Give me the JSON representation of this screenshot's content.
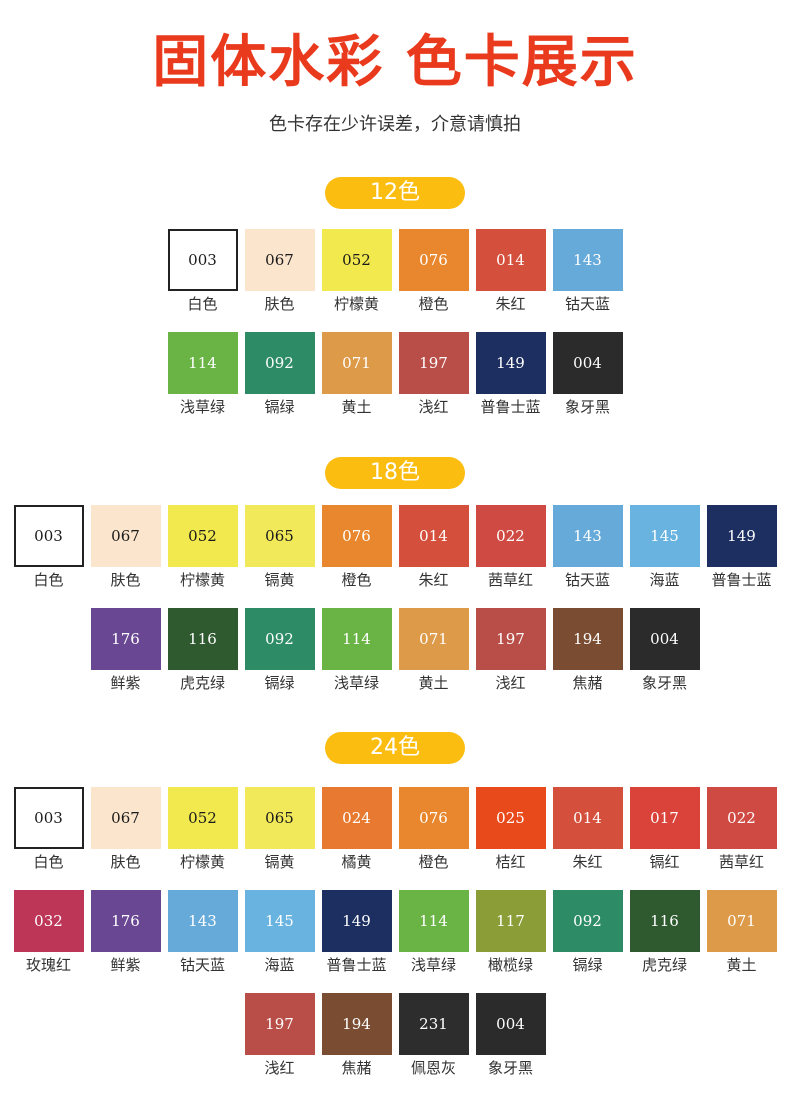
{
  "title": "固体水彩 色卡展示",
  "subtitle": "色卡存在少许误差，介意请慎拍",
  "sets": [
    {
      "label": "12色",
      "rows": [
        [
          {
            "code": "003",
            "name": "白色",
            "color": "#ffffff",
            "text": "#1a1a1a",
            "border": true
          },
          {
            "code": "067",
            "name": "肤色",
            "color": "#fce5cd",
            "text": "#1a1a1a"
          },
          {
            "code": "052",
            "name": "柠檬黄",
            "color": "#f2e94e",
            "text": "#1a1a1a"
          },
          {
            "code": "076",
            "name": "橙色",
            "color": "#e8872d",
            "text": "#ffffff"
          },
          {
            "code": "014",
            "name": "朱红",
            "color": "#d5503c",
            "text": "#ffffff"
          },
          {
            "code": "143",
            "name": "钴天蓝",
            "color": "#66aad9",
            "text": "#ffffff"
          }
        ],
        [
          {
            "code": "114",
            "name": "浅草绿",
            "color": "#6ab446",
            "text": "#ffffff"
          },
          {
            "code": "092",
            "name": "镉绿",
            "color": "#2d8b66",
            "text": "#ffffff"
          },
          {
            "code": "071",
            "name": "黄土",
            "color": "#dd9a48",
            "text": "#ffffff"
          },
          {
            "code": "197",
            "name": "浅红",
            "color": "#b84e47",
            "text": "#ffffff"
          },
          {
            "code": "149",
            "name": "普鲁士蓝",
            "color": "#1c2f60",
            "text": "#ffffff"
          },
          {
            "code": "004",
            "name": "象牙黑",
            "color": "#2b2b2b",
            "text": "#ffffff"
          }
        ]
      ]
    },
    {
      "label": "18色",
      "rows": [
        [
          {
            "code": "003",
            "name": "白色",
            "color": "#ffffff",
            "text": "#1a1a1a",
            "border": true
          },
          {
            "code": "067",
            "name": "肤色",
            "color": "#fce5cd",
            "text": "#1a1a1a"
          },
          {
            "code": "052",
            "name": "柠檬黄",
            "color": "#f2e94e",
            "text": "#1a1a1a"
          },
          {
            "code": "065",
            "name": "镉黄",
            "color": "#f1e95a",
            "text": "#1a1a1a"
          },
          {
            "code": "076",
            "name": "橙色",
            "color": "#e8872d",
            "text": "#ffffff"
          },
          {
            "code": "014",
            "name": "朱红",
            "color": "#d5503c",
            "text": "#ffffff"
          },
          {
            "code": "022",
            "name": "茜草红",
            "color": "#cf4a43",
            "text": "#ffffff"
          },
          {
            "code": "143",
            "name": "钴天蓝",
            "color": "#66aad9",
            "text": "#ffffff"
          },
          {
            "code": "145",
            "name": "海蓝",
            "color": "#68b3e0",
            "text": "#ffffff"
          },
          {
            "code": "149",
            "name": "普鲁士蓝",
            "color": "#1c2f60",
            "text": "#ffffff"
          }
        ],
        [
          {
            "code": "176",
            "name": "鲜紫",
            "color": "#6a4792",
            "text": "#ffffff"
          },
          {
            "code": "116",
            "name": "虎克绿",
            "color": "#2f5a30",
            "text": "#ffffff"
          },
          {
            "code": "092",
            "name": "镉绿",
            "color": "#2d8b66",
            "text": "#ffffff"
          },
          {
            "code": "114",
            "name": "浅草绿",
            "color": "#6ab446",
            "text": "#ffffff"
          },
          {
            "code": "071",
            "name": "黄土",
            "color": "#dd9a48",
            "text": "#ffffff"
          },
          {
            "code": "197",
            "name": "浅红",
            "color": "#b84e47",
            "text": "#ffffff"
          },
          {
            "code": "194",
            "name": "焦赭",
            "color": "#7a4d33",
            "text": "#ffffff"
          },
          {
            "code": "004",
            "name": "象牙黑",
            "color": "#2b2b2b",
            "text": "#ffffff"
          }
        ]
      ]
    },
    {
      "label": "24色",
      "rows": [
        [
          {
            "code": "003",
            "name": "白色",
            "color": "#ffffff",
            "text": "#1a1a1a",
            "border": true
          },
          {
            "code": "067",
            "name": "肤色",
            "color": "#fce5cd",
            "text": "#1a1a1a"
          },
          {
            "code": "052",
            "name": "柠檬黄",
            "color": "#f2e94e",
            "text": "#1a1a1a"
          },
          {
            "code": "065",
            "name": "镉黄",
            "color": "#f1e95a",
            "text": "#1a1a1a"
          },
          {
            "code": "024",
            "name": "橘黄",
            "color": "#e77a30",
            "text": "#ffffff"
          },
          {
            "code": "076",
            "name": "橙色",
            "color": "#e8872d",
            "text": "#ffffff"
          },
          {
            "code": "025",
            "name": "桔红",
            "color": "#e84a1b",
            "text": "#ffffff"
          },
          {
            "code": "014",
            "name": "朱红",
            "color": "#d5503c",
            "text": "#ffffff"
          },
          {
            "code": "017",
            "name": "镉红",
            "color": "#d9433a",
            "text": "#ffffff"
          },
          {
            "code": "022",
            "name": "茜草红",
            "color": "#cf4a43",
            "text": "#ffffff"
          }
        ],
        [
          {
            "code": "032",
            "name": "玫瑰红",
            "color": "#be3657",
            "text": "#ffffff"
          },
          {
            "code": "176",
            "name": "鲜紫",
            "color": "#6a4792",
            "text": "#ffffff"
          },
          {
            "code": "143",
            "name": "钴天蓝",
            "color": "#66aad9",
            "text": "#ffffff"
          },
          {
            "code": "145",
            "name": "海蓝",
            "color": "#68b3e0",
            "text": "#ffffff"
          },
          {
            "code": "149",
            "name": "普鲁士蓝",
            "color": "#1c2f60",
            "text": "#ffffff"
          },
          {
            "code": "114",
            "name": "浅草绿",
            "color": "#6ab446",
            "text": "#ffffff"
          },
          {
            "code": "117",
            "name": "橄榄绿",
            "color": "#8a9d37",
            "text": "#ffffff"
          },
          {
            "code": "092",
            "name": "镉绿",
            "color": "#2d8b66",
            "text": "#ffffff"
          },
          {
            "code": "116",
            "name": "虎克绿",
            "color": "#2f5a30",
            "text": "#ffffff"
          },
          {
            "code": "071",
            "name": "黄土",
            "color": "#dd9a48",
            "text": "#ffffff"
          }
        ],
        [
          {
            "code": "197",
            "name": "浅红",
            "color": "#b84e47",
            "text": "#ffffff"
          },
          {
            "code": "194",
            "name": "焦赭",
            "color": "#7a4d33",
            "text": "#ffffff"
          },
          {
            "code": "231",
            "name": "佩恩灰",
            "color": "#2d2d2e",
            "text": "#ffffff"
          },
          {
            "code": "004",
            "name": "象牙黑",
            "color": "#2b2b2b",
            "text": "#ffffff"
          }
        ]
      ]
    }
  ]
}
